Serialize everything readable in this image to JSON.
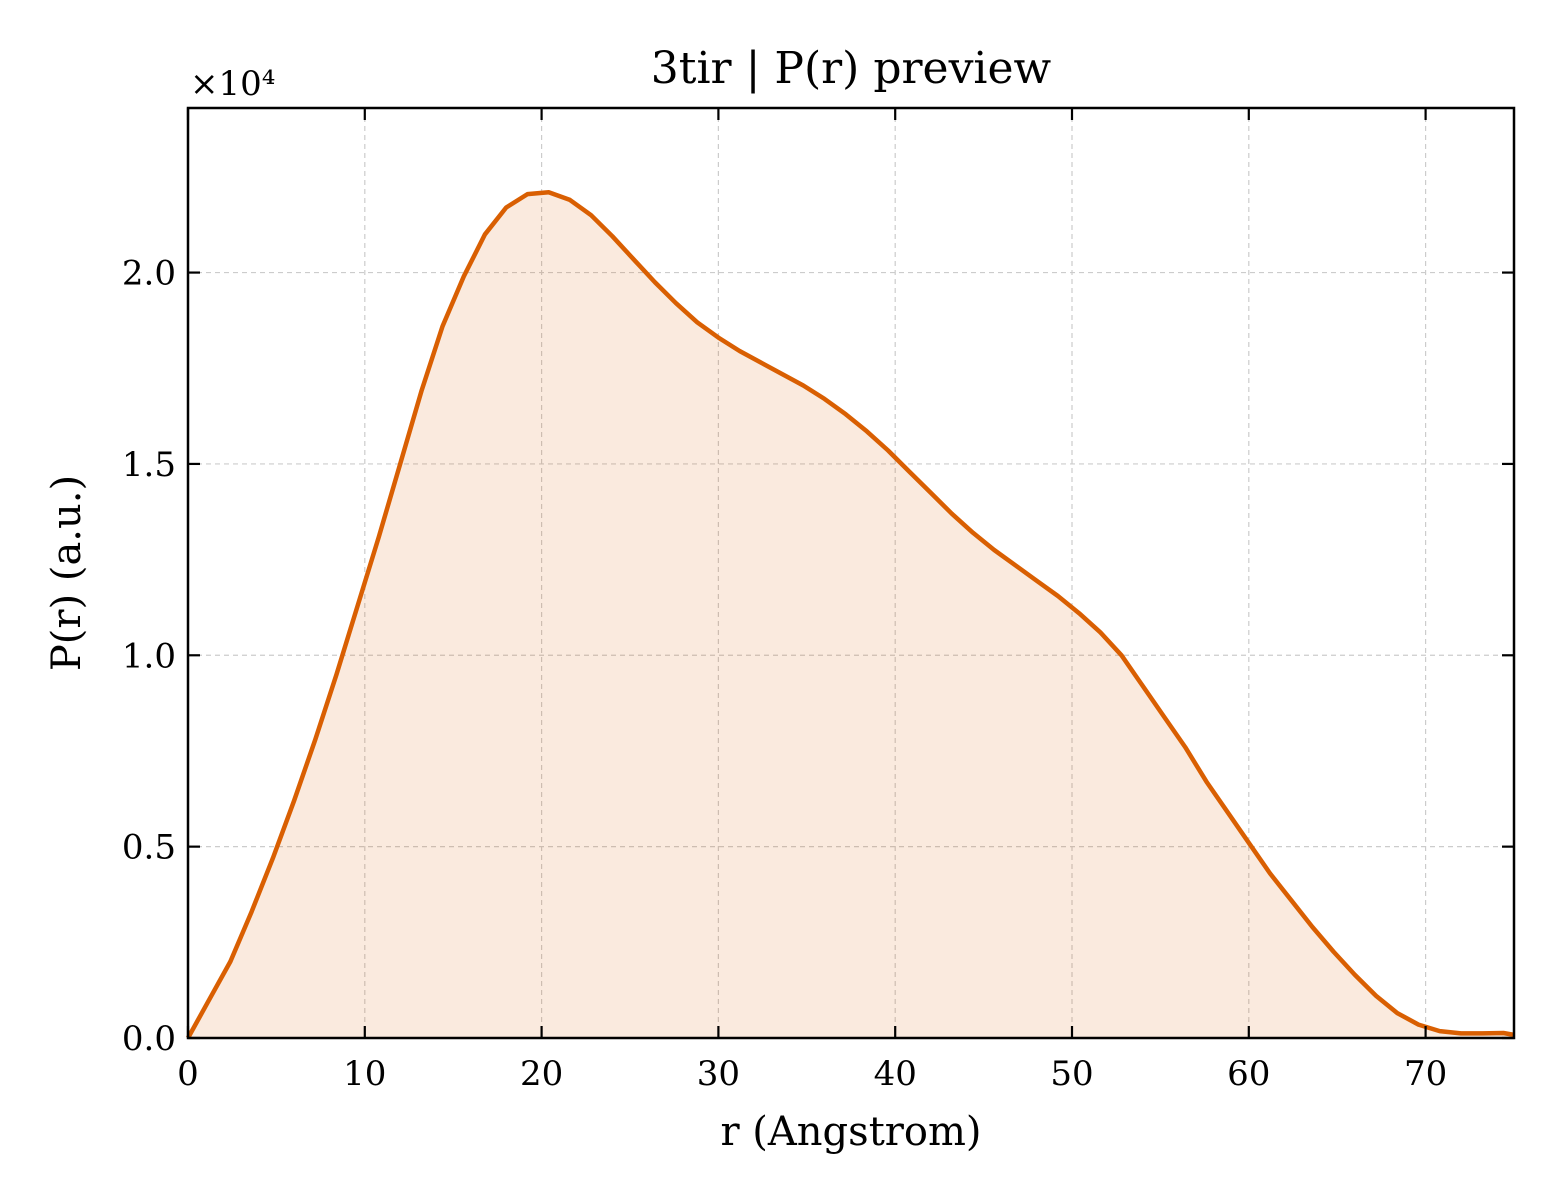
{
  "chart_data": {
    "type": "area",
    "title": "3tir | P(r) preview",
    "xlabel": "r (Angstrom)",
    "ylabel": "P(r) (a.u.)",
    "y_multiplier_label": "×10⁴",
    "xlim": [
      0,
      75
    ],
    "ylim": [
      0,
      2.43
    ],
    "xticks": [
      0,
      10,
      20,
      30,
      40,
      50,
      60,
      70
    ],
    "xtick_labels": [
      "0",
      "10",
      "20",
      "30",
      "40",
      "50",
      "60",
      "70"
    ],
    "yticks": [
      0.0,
      0.5,
      1.0,
      1.5,
      2.0
    ],
    "ytick_labels": [
      "0.0",
      "0.5",
      "1.0",
      "1.5",
      "2.0"
    ],
    "grid": true,
    "line_color": "#d95f02",
    "fill_color": "#d95f02",
    "fill_opacity": 0.13,
    "series": [
      {
        "x": [
          0,
          1.2,
          2.4,
          3.6,
          4.8,
          6.0,
          7.2,
          8.4,
          9.6,
          10.8,
          12.0,
          13.2,
          14.4,
          15.6,
          16.8,
          18.0,
          19.2,
          20.4,
          21.6,
          22.8,
          24.0,
          25.2,
          26.4,
          27.6,
          28.8,
          30.0,
          31.2,
          32.4,
          33.6,
          34.8,
          36.0,
          37.2,
          38.4,
          39.6,
          40.8,
          42.0,
          43.2,
          44.4,
          45.6,
          46.8,
          48.0,
          49.2,
          50.4,
          51.6,
          52.8,
          54.0,
          55.2,
          56.4,
          57.6,
          58.8,
          60.0,
          61.2,
          62.4,
          63.6,
          64.8,
          66.0,
          67.2,
          68.4,
          69.6,
          70.8,
          72.0,
          73.2,
          74.4,
          75.0
        ],
        "y": [
          0.0,
          0.1,
          0.2,
          0.33,
          0.47,
          0.62,
          0.78,
          0.95,
          1.13,
          1.31,
          1.5,
          1.69,
          1.86,
          1.99,
          2.1,
          2.17,
          2.205,
          2.21,
          2.19,
          2.15,
          2.095,
          2.035,
          1.975,
          1.92,
          1.87,
          1.83,
          1.795,
          1.765,
          1.735,
          1.705,
          1.67,
          1.63,
          1.585,
          1.535,
          1.48,
          1.425,
          1.37,
          1.32,
          1.275,
          1.235,
          1.195,
          1.155,
          1.11,
          1.06,
          1.0,
          0.92,
          0.84,
          0.76,
          0.67,
          0.59,
          0.51,
          0.43,
          0.36,
          0.29,
          0.225,
          0.165,
          0.11,
          0.065,
          0.035,
          0.018,
          0.012,
          0.012,
          0.013,
          0.008
        ]
      }
    ]
  }
}
